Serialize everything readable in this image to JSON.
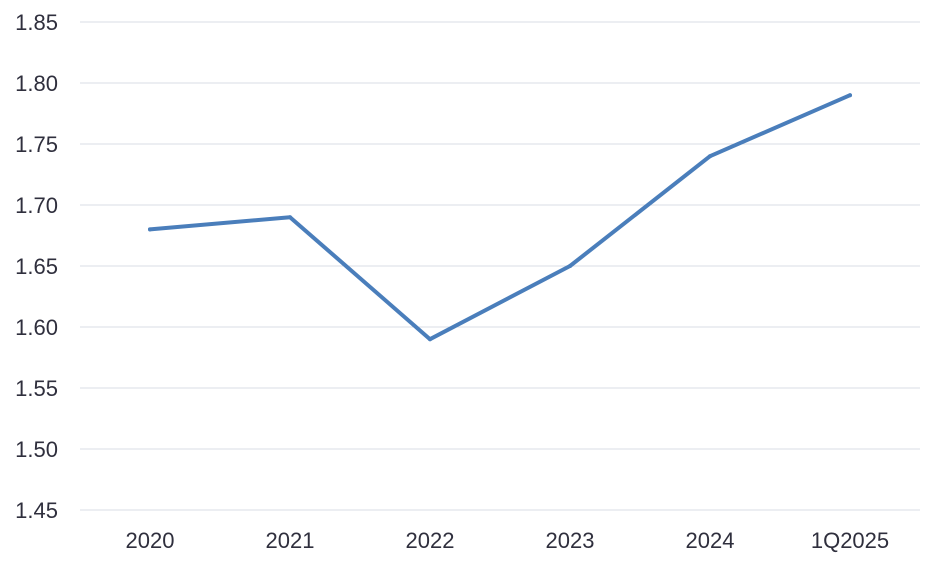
{
  "chart_data": {
    "type": "line",
    "title": "",
    "xlabel": "",
    "ylabel": "",
    "categories": [
      "2020",
      "2021",
      "2022",
      "2023",
      "2024",
      "1Q2025"
    ],
    "series": [
      {
        "values": [
          1.68,
          1.69,
          1.59,
          1.65,
          1.74,
          1.79
        ],
        "color": "#4a7ebb"
      }
    ],
    "ylim": [
      1.45,
      1.85
    ],
    "yticks": [
      "1.85",
      "1.80",
      "1.75",
      "1.70",
      "1.65",
      "1.60",
      "1.55",
      "1.50",
      "1.45"
    ],
    "grid": true,
    "legend": "none",
    "colors": {
      "grid": "#d9dde6",
      "text": "#2f2f3d",
      "line": "#4a7ebb"
    }
  }
}
